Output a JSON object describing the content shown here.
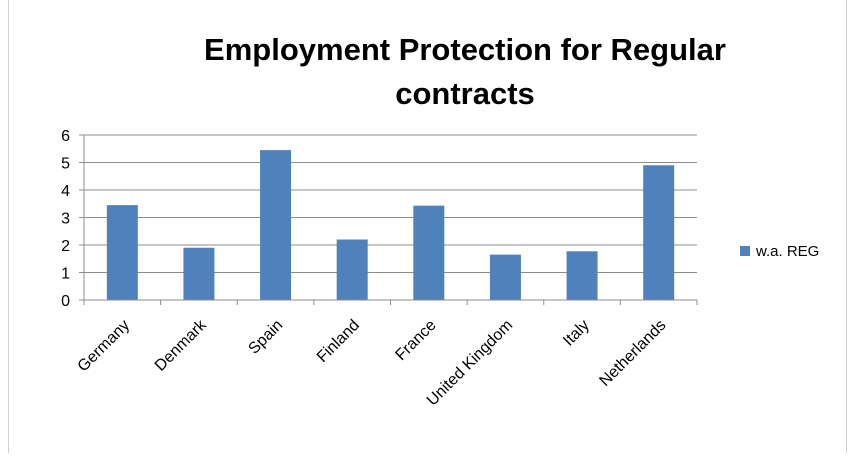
{
  "chart_data": {
    "type": "bar",
    "title_line1": "Employment Protection for Regular",
    "title_line2": "contracts",
    "categories": [
      "Germany",
      "Denmark",
      "Spain",
      "Finland",
      "France",
      "United Kingdom",
      "Italy",
      "Netherlands"
    ],
    "series": [
      {
        "name": "w.a. REG",
        "values": [
          3.45,
          1.9,
          5.45,
          2.2,
          3.43,
          1.65,
          1.77,
          4.9
        ],
        "color": "#4f81bd"
      }
    ],
    "ylim": [
      0,
      6
    ],
    "yticks": [
      0,
      1,
      2,
      3,
      4,
      5,
      6
    ],
    "grid": true,
    "legend_position": "right"
  }
}
